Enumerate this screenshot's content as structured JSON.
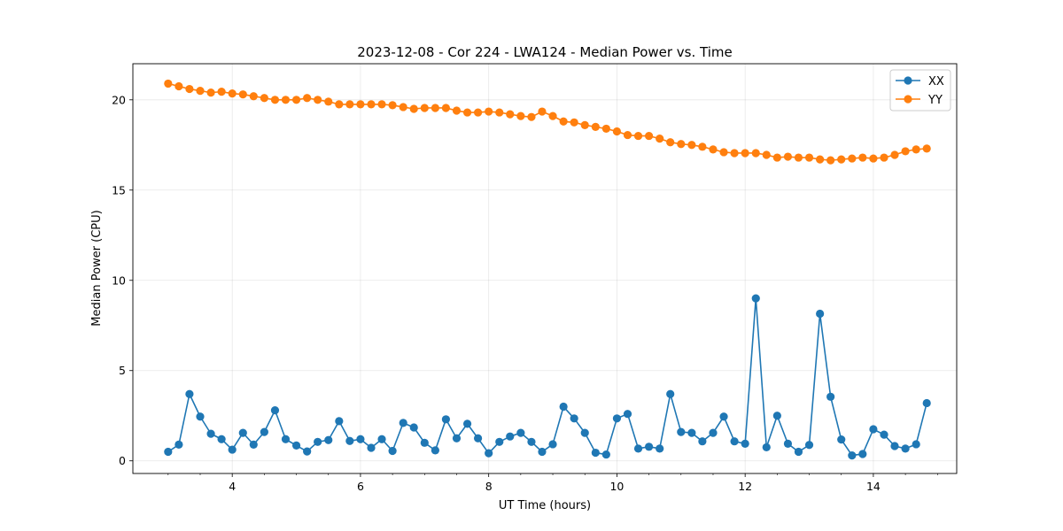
{
  "chart_data": {
    "type": "line",
    "title": "2023-12-08 - Cor 224 - LWA124 - Median Power vs. Time",
    "xlabel": "UT Time (hours)",
    "ylabel": "Median Power (CPU)",
    "xlim": [
      2.45,
      15.3
    ],
    "ylim": [
      -0.7,
      22.0
    ],
    "xticks": [
      4,
      6,
      8,
      10,
      12,
      14
    ],
    "xtick_labels": [
      "4",
      "6",
      "8",
      "10",
      "12",
      "14"
    ],
    "yticks": [
      0,
      5,
      10,
      15,
      20
    ],
    "ytick_labels": [
      "0",
      "5",
      "10",
      "15",
      "20"
    ],
    "grid": true,
    "legend_position": "top-right",
    "x": [
      3.0,
      3.167,
      3.333,
      3.5,
      3.667,
      3.833,
      4.0,
      4.167,
      4.333,
      4.5,
      4.667,
      4.833,
      5.0,
      5.167,
      5.333,
      5.5,
      5.667,
      5.833,
      6.0,
      6.167,
      6.333,
      6.5,
      6.667,
      6.833,
      7.0,
      7.167,
      7.333,
      7.5,
      7.667,
      7.833,
      8.0,
      8.167,
      8.333,
      8.5,
      8.667,
      8.833,
      9.0,
      9.167,
      9.333,
      9.5,
      9.667,
      9.833,
      10.0,
      10.167,
      10.333,
      10.5,
      10.667,
      10.833,
      11.0,
      11.167,
      11.333,
      11.5,
      11.667,
      11.833,
      12.0,
      12.167,
      12.333,
      12.5,
      12.667,
      12.833,
      13.0,
      13.167,
      13.333,
      13.5,
      13.667,
      13.833,
      14.0,
      14.167,
      14.333,
      14.5,
      14.667,
      14.833
    ],
    "series": [
      {
        "name": "XX",
        "color": "#1f77b4",
        "values": [
          0.5,
          0.9,
          3.7,
          2.45,
          1.5,
          1.2,
          0.62,
          1.55,
          0.9,
          1.6,
          2.8,
          1.2,
          0.85,
          0.52,
          1.05,
          1.15,
          2.2,
          1.1,
          1.2,
          0.72,
          1.2,
          0.55,
          2.1,
          1.85,
          1.0,
          0.58,
          2.3,
          1.25,
          2.05,
          1.25,
          0.42,
          1.05,
          1.35,
          1.55,
          1.05,
          0.5,
          0.92,
          3.0,
          2.35,
          1.55,
          0.45,
          0.35,
          2.35,
          2.6,
          0.68,
          0.78,
          0.68,
          3.7,
          1.6,
          1.55,
          1.08,
          1.55,
          2.45,
          1.08,
          0.95,
          9.0,
          0.75,
          2.5,
          0.95,
          0.5,
          0.88,
          8.15,
          3.55,
          1.18,
          0.3,
          0.38,
          1.75,
          1.45,
          0.82,
          0.68,
          0.92,
          3.2
        ]
      },
      {
        "name": "YY",
        "color": "#ff7f0e",
        "values": [
          20.9,
          20.75,
          20.6,
          20.5,
          20.4,
          20.45,
          20.35,
          20.3,
          20.2,
          20.1,
          20.0,
          20.0,
          20.0,
          20.1,
          20.0,
          19.9,
          19.75,
          19.75,
          19.75,
          19.75,
          19.75,
          19.7,
          19.6,
          19.5,
          19.55,
          19.55,
          19.55,
          19.4,
          19.3,
          19.3,
          19.35,
          19.3,
          19.2,
          19.1,
          19.05,
          19.35,
          19.1,
          18.8,
          18.75,
          18.6,
          18.5,
          18.4,
          18.25,
          18.05,
          18.0,
          18.0,
          17.85,
          17.65,
          17.55,
          17.5,
          17.4,
          17.25,
          17.1,
          17.05,
          17.05,
          17.05,
          16.95,
          16.8,
          16.85,
          16.8,
          16.8,
          16.7,
          16.65,
          16.7,
          16.75,
          16.8,
          16.75,
          16.8,
          16.95,
          17.15,
          17.25,
          17.3
        ]
      }
    ]
  }
}
